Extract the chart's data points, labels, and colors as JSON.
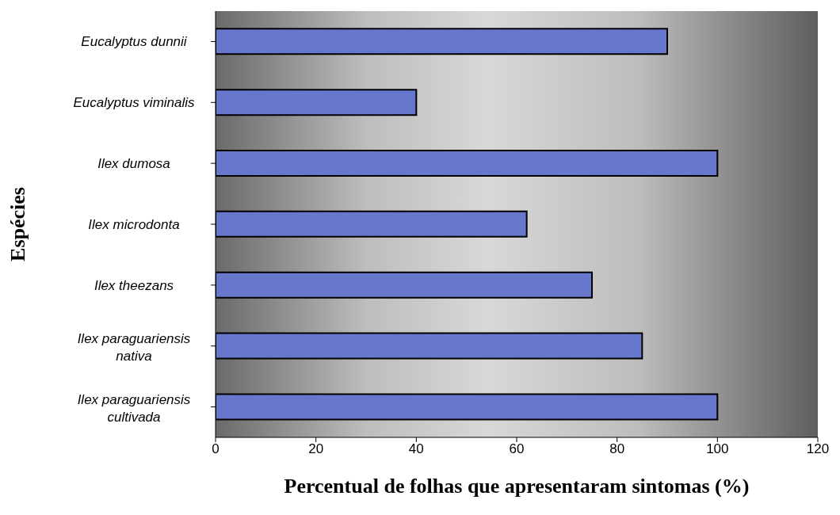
{
  "chart_data": {
    "type": "bar",
    "orientation": "horizontal",
    "xlabel": "Percentual de folhas que apresentaram sintomas (%)",
    "ylabel": "Espécies",
    "categories": [
      "Eucalyptus dunnii",
      "Eucalyptus viminalis",
      "Ilex dumosa",
      "Ilex microdonta",
      "Ilex theezans",
      "Ilex paraguariensis nativa",
      "Ilex paraguariensis cultivada"
    ],
    "values": [
      90,
      40,
      100,
      62,
      75,
      85,
      100
    ],
    "color": "#6677cc",
    "xlim": [
      0,
      120
    ],
    "xticks": [
      0,
      20,
      40,
      60,
      80,
      100,
      120
    ]
  }
}
